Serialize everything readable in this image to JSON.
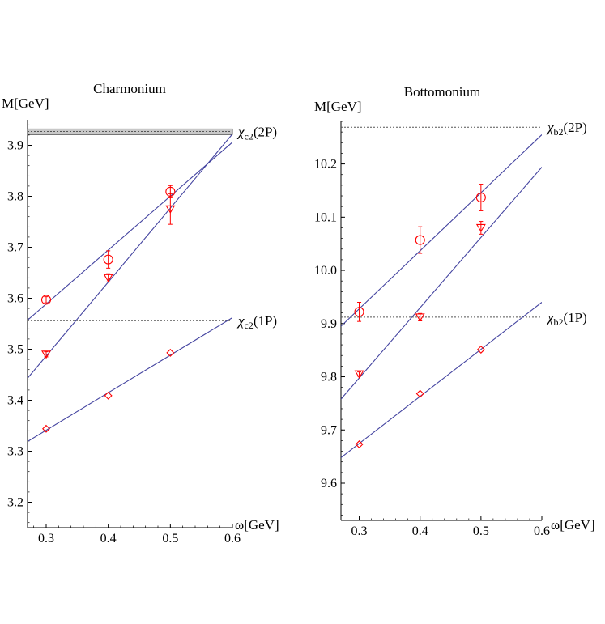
{
  "chart_data": [
    {
      "type": "scatter",
      "title": "Charmonium",
      "ylabel": "M[GeV]",
      "xlabel": "ω[GeV]",
      "xlim": [
        0.27,
        0.6
      ],
      "ylim": [
        3.15,
        3.95
      ],
      "x_ticks": [
        0.3,
        0.4,
        0.5,
        0.6
      ],
      "x_tick_labels": [
        "0.3",
        "0.4",
        "0.5",
        "0.6"
      ],
      "y_ticks": [
        3.2,
        3.3,
        3.4,
        3.5,
        3.6,
        3.7,
        3.8,
        3.9
      ],
      "y_tick_labels": [
        "3.2",
        "3.3",
        "3.4",
        "3.5",
        "3.6",
        "3.7",
        "3.8",
        "3.9"
      ],
      "reference_lines": [
        {
          "label": "χ",
          "sub": "c2",
          "suffix": "(2P)",
          "value": 3.927,
          "band": [
            3.921,
            3.932
          ]
        },
        {
          "label": "χ",
          "sub": "c2",
          "suffix": "(1P)",
          "value": 3.556
        }
      ],
      "series": [
        {
          "marker": "circle",
          "color": "#ff0000",
          "points": [
            {
              "x": 0.3,
              "y": 3.597,
              "err": 0.006
            },
            {
              "x": 0.4,
              "y": 3.676,
              "err": 0.017
            },
            {
              "x": 0.5,
              "y": 3.809,
              "err": 0.012
            }
          ],
          "fit": [
            {
              "x": 0.27,
              "y": 3.557
            },
            {
              "x": 0.6,
              "y": 3.906
            }
          ]
        },
        {
          "marker": "triangle-down",
          "color": "#ff0000",
          "points": [
            {
              "x": 0.3,
              "y": 3.49,
              "err": 0.005
            },
            {
              "x": 0.4,
              "y": 3.64,
              "err": 0.008
            },
            {
              "x": 0.5,
              "y": 3.775,
              "err": 0.03
            }
          ],
          "fit": [
            {
              "x": 0.27,
              "y": 3.443
            },
            {
              "x": 0.6,
              "y": 3.922
            }
          ]
        },
        {
          "marker": "diamond",
          "color": "#ff0000",
          "points": [
            {
              "x": 0.3,
              "y": 3.344,
              "err": 0
            },
            {
              "x": 0.4,
              "y": 3.409,
              "err": 0
            },
            {
              "x": 0.5,
              "y": 3.493,
              "err": 0
            }
          ],
          "fit": [
            {
              "x": 0.27,
              "y": 3.319
            },
            {
              "x": 0.6,
              "y": 3.562
            }
          ]
        }
      ]
    },
    {
      "type": "scatter",
      "title": "Bottomonium",
      "ylabel": "M[GeV]",
      "xlabel": "ω[GeV]",
      "xlim": [
        0.27,
        0.6
      ],
      "ylim": [
        9.53,
        10.28
      ],
      "x_ticks": [
        0.3,
        0.4,
        0.5,
        0.6
      ],
      "x_tick_labels": [
        "0.3",
        "0.4",
        "0.5",
        "0.6"
      ],
      "y_ticks": [
        9.6,
        9.7,
        9.8,
        9.9,
        10.0,
        10.1,
        10.2
      ],
      "y_tick_labels": [
        "9.6",
        "9.7",
        "9.8",
        "9.9",
        "10.0",
        "10.1",
        "10.2"
      ],
      "reference_lines": [
        {
          "label": "χ",
          "sub": "b2",
          "suffix": "(2P)",
          "value": 10.269
        },
        {
          "label": "χ",
          "sub": "b2",
          "suffix": "(1P)",
          "value": 9.912
        }
      ],
      "series": [
        {
          "marker": "circle",
          "color": "#ff0000",
          "points": [
            {
              "x": 0.3,
              "y": 9.922,
              "err": 0.018
            },
            {
              "x": 0.4,
              "y": 10.057,
              "err": 0.025
            },
            {
              "x": 0.5,
              "y": 10.137,
              "err": 0.025
            }
          ],
          "fit": [
            {
              "x": 0.27,
              "y": 9.895
            },
            {
              "x": 0.6,
              "y": 10.255
            }
          ]
        },
        {
          "marker": "triangle-down",
          "color": "#ff0000",
          "points": [
            {
              "x": 0.3,
              "y": 9.805,
              "err": 0.004
            },
            {
              "x": 0.4,
              "y": 9.912,
              "err": 0.007
            },
            {
              "x": 0.5,
              "y": 10.08,
              "err": 0.012
            }
          ],
          "fit": [
            {
              "x": 0.27,
              "y": 9.758
            },
            {
              "x": 0.6,
              "y": 10.194
            }
          ]
        },
        {
          "marker": "diamond",
          "color": "#ff0000",
          "points": [
            {
              "x": 0.3,
              "y": 9.673,
              "err": 0
            },
            {
              "x": 0.4,
              "y": 9.768,
              "err": 0
            },
            {
              "x": 0.5,
              "y": 9.851,
              "err": 0
            }
          ],
          "fit": [
            {
              "x": 0.27,
              "y": 9.648
            },
            {
              "x": 0.6,
              "y": 9.94
            }
          ]
        }
      ]
    }
  ],
  "colors": {
    "fit_line": "#4444a0",
    "marker": "#ff0000",
    "reference": "#555555",
    "band": "#c8c8c8"
  }
}
